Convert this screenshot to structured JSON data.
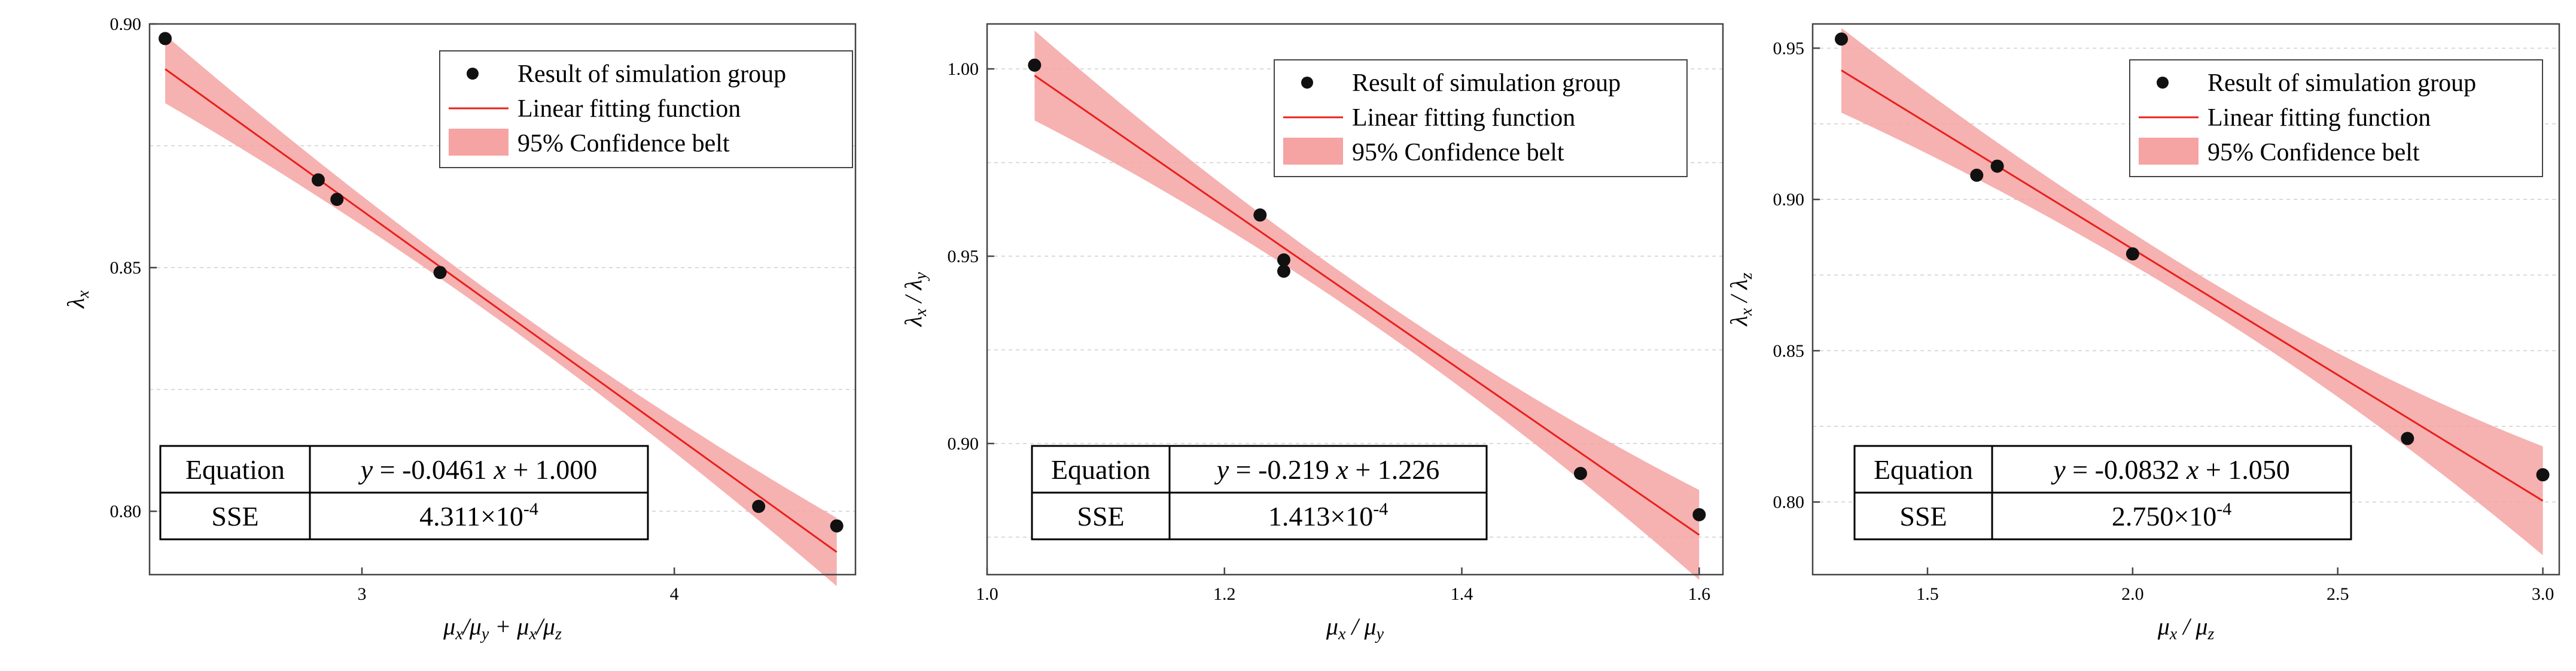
{
  "colors": {
    "fit_line": "#e8201c",
    "band_fill": "#f5a3a3",
    "point": "#111111",
    "frame": "#444444",
    "grid": "#cfcfcf"
  },
  "legend": {
    "points": "Result of simulation group",
    "fit": "Linear fitting function",
    "band": "95% Confidence belt"
  },
  "table_labels": {
    "equation": "Equation",
    "sse": "SSE"
  },
  "chart_data": [
    {
      "type": "scatter",
      "title": "",
      "xlabel": "μx/μy + μx/μz",
      "ylabel": "λx",
      "xlim": [
        2.32,
        4.58
      ],
      "ylim": [
        0.787,
        0.9
      ],
      "xticks": [
        3,
        4
      ],
      "xtick_labels": [
        "3",
        "4"
      ],
      "yticks": [
        0.8,
        0.85,
        0.9
      ],
      "ytick_labels": [
        "0.80",
        "0.85",
        "0.90"
      ],
      "x": [
        2.37,
        2.86,
        2.92,
        3.25,
        4.27,
        4.52
      ],
      "y": [
        0.897,
        0.868,
        0.864,
        0.849,
        0.801,
        0.797
      ],
      "fit": {
        "slope": -0.0461,
        "intercept": 1.0,
        "x_range": [
          2.37,
          4.52
        ]
      },
      "band_halfwidth": [
        0.007,
        0.0022,
        0.007
      ],
      "equation": "y = -0.0461 x + 1.000",
      "sse": "4.311×10-4"
    },
    {
      "type": "scatter",
      "title": "",
      "xlabel": "μx / μy",
      "ylabel": "λx / λy",
      "xlim": [
        1.0,
        1.62
      ],
      "ylim": [
        0.865,
        1.012
      ],
      "xticks": [
        1.0,
        1.2,
        1.4,
        1.6
      ],
      "xtick_labels": [
        "1.0",
        "1.2",
        "1.4",
        "1.6"
      ],
      "yticks": [
        0.9,
        0.95,
        1.0
      ],
      "ytick_labels": [
        "0.90",
        "0.95",
        "1.00"
      ],
      "x": [
        1.04,
        1.23,
        1.25,
        1.25,
        1.5,
        1.6
      ],
      "y": [
        1.001,
        0.961,
        0.949,
        0.946,
        0.892,
        0.881
      ],
      "fit": {
        "slope": -0.219,
        "intercept": 1.226,
        "x_range": [
          1.04,
          1.6
        ]
      },
      "band_halfwidth": [
        0.012,
        0.004,
        0.012
      ],
      "equation": "y = -0.219 x + 1.226",
      "sse": "1.413×10-4"
    },
    {
      "type": "scatter",
      "title": "",
      "xlabel": "μx / μz",
      "ylabel": "λx / λz",
      "xlim": [
        1.22,
        3.04
      ],
      "ylim": [
        0.776,
        0.958
      ],
      "xticks": [
        1.5,
        2.0,
        2.5,
        3.0
      ],
      "xtick_labels": [
        "1.5",
        "2.0",
        "2.5",
        "3.0"
      ],
      "yticks": [
        0.8,
        0.85,
        0.9,
        0.95
      ],
      "ytick_labels": [
        "0.80",
        "0.85",
        "0.90",
        "0.95"
      ],
      "x": [
        1.29,
        1.62,
        1.67,
        2.0,
        2.67,
        3.0
      ],
      "y": [
        0.953,
        0.908,
        0.911,
        0.882,
        0.821,
        0.809
      ],
      "fit": {
        "slope": -0.0832,
        "intercept": 1.05,
        "x_range": [
          1.29,
          3.0
        ]
      },
      "band_halfwidth": [
        0.014,
        0.005,
        0.018
      ],
      "equation": "y = -0.0832 x + 1.050",
      "sse": "2.750×10-4"
    }
  ]
}
